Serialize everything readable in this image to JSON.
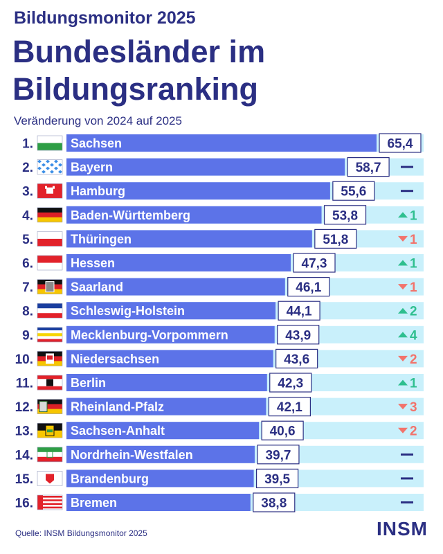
{
  "header": {
    "kicker": "Bildungsmonitor 2025",
    "title_line1": "Bundesländer im",
    "title_line2": "Bildungsranking",
    "subtitle": "Veränderung von 2024 auf 2025"
  },
  "footer": {
    "source": "Quelle: INSM Bildungsmonitor 2025",
    "logo": "INSM"
  },
  "colors": {
    "bar": "#5c73e8",
    "track": "#c9f0fb",
    "text_dark": "#2b2f83",
    "up": "#2fbf8f",
    "down": "#f2736b"
  },
  "chart_data": {
    "type": "bar",
    "orientation": "horizontal",
    "title": "Bundesländer im Bildungsranking",
    "xlim": [
      0,
      65.4
    ],
    "categories": [
      "Sachsen",
      "Bayern",
      "Hamburg",
      "Baden-Württemberg",
      "Thüringen",
      "Hessen",
      "Saarland",
      "Schleswig-Holstein",
      "Mecklenburg-Vorpommern",
      "Niedersachsen",
      "Berlin",
      "Rheinland-Pfalz",
      "Sachsen-Anhalt",
      "Nordrhein-Westfalen",
      "Brandenburg",
      "Bremen"
    ],
    "ranks": [
      "1.",
      "2.",
      "3.",
      "4.",
      "5.",
      "6.",
      "7.",
      "8.",
      "9.",
      "10.",
      "11.",
      "12.",
      "13.",
      "14.",
      "15.",
      "16."
    ],
    "values": [
      65.4,
      58.7,
      55.6,
      53.8,
      51.8,
      47.3,
      46.1,
      44.1,
      43.9,
      43.6,
      42.3,
      42.1,
      40.6,
      39.7,
      39.5,
      38.8
    ],
    "value_labels": [
      "65,4",
      "58,7",
      "55,6",
      "53,8",
      "51,8",
      "47,3",
      "46,1",
      "44,1",
      "43,9",
      "43,6",
      "42,3",
      "42,1",
      "40,6",
      "39,7",
      "39,5",
      "38,8"
    ],
    "change_direction": [
      "",
      "same",
      "same",
      "up",
      "down",
      "up",
      "down",
      "up",
      "up",
      "down",
      "up",
      "down",
      "down",
      "same",
      "same",
      "same"
    ],
    "change_labels": [
      "",
      "",
      "",
      "1",
      "1",
      "1",
      "1",
      "2",
      "4",
      "2",
      "1",
      "3",
      "2",
      "",
      "",
      ""
    ]
  }
}
